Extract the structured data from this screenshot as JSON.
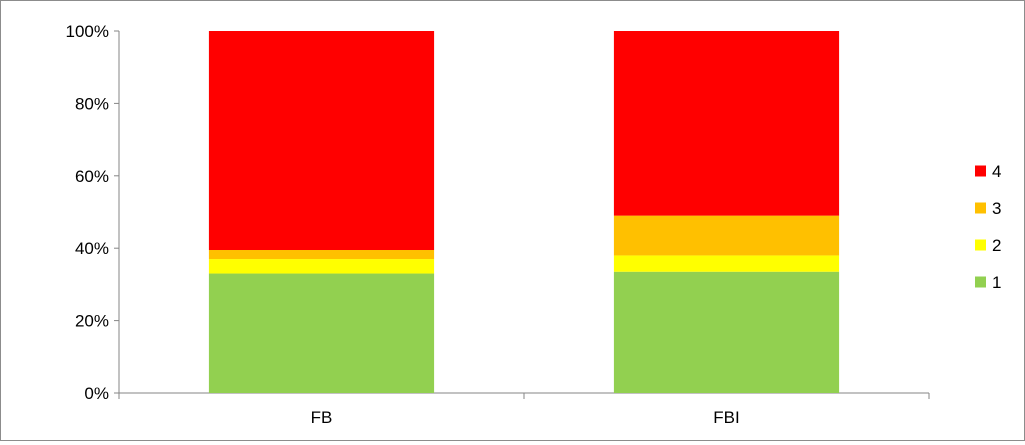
{
  "chart_data": {
    "type": "bar",
    "stacked": true,
    "percent": true,
    "categories": [
      "FB",
      "FBI"
    ],
    "series": [
      {
        "name": "1",
        "values": [
          33,
          33.5
        ],
        "color": "#92d050"
      },
      {
        "name": "2",
        "values": [
          4,
          4.5
        ],
        "color": "#ffff00"
      },
      {
        "name": "3",
        "values": [
          2.5,
          11
        ],
        "color": "#ffc000"
      },
      {
        "name": "4",
        "values": [
          60.5,
          51
        ],
        "color": "#ff0000"
      }
    ],
    "ylim": [
      0,
      100
    ],
    "yticks": [
      "0%",
      "20%",
      "40%",
      "60%",
      "80%",
      "100%"
    ],
    "legend_position": "right",
    "grid": false
  }
}
